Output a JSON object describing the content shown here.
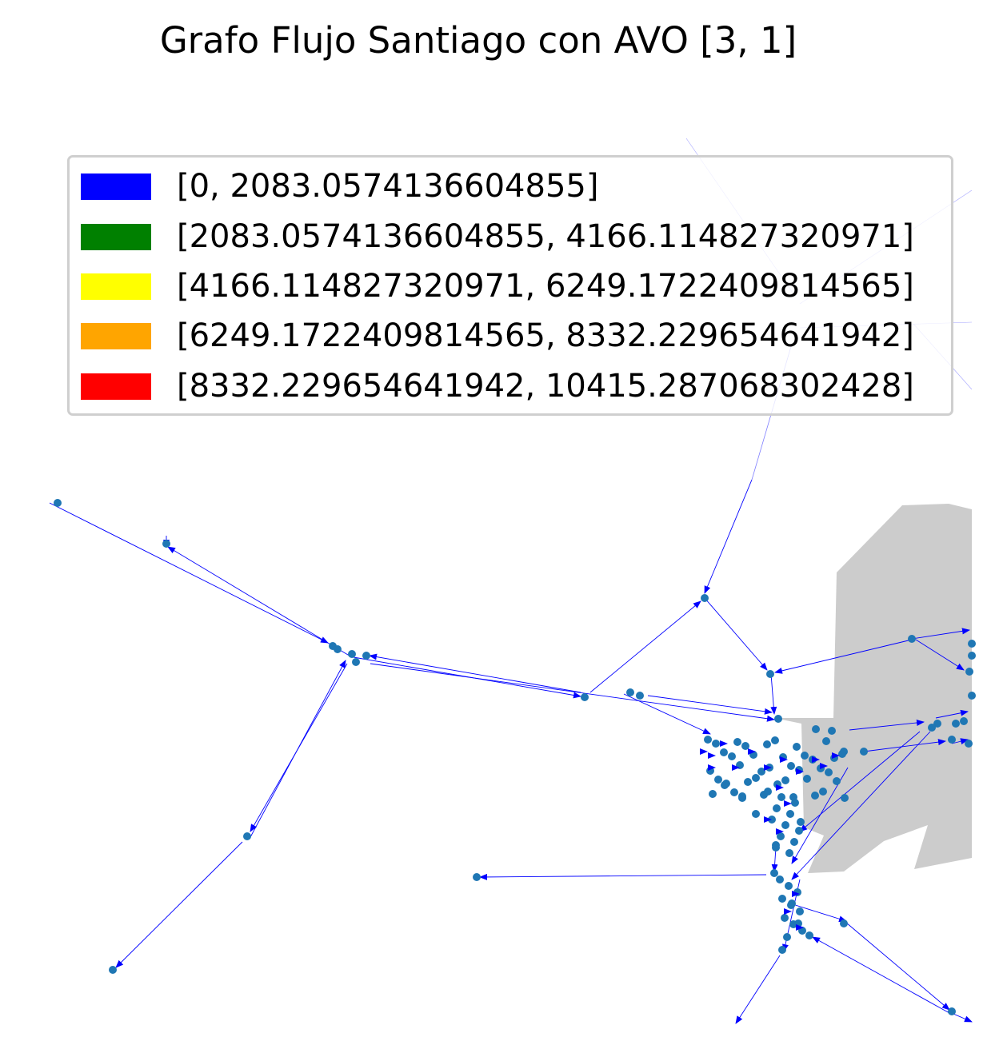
{
  "chart_data": {
    "type": "network_graph",
    "title": "Grafo Flujo Santiago con AVO [3, 1]",
    "legend": {
      "placement": "upper-center",
      "entries": [
        {
          "label": "[0, 2083.0574136604855]",
          "color": "#0000ff"
        },
        {
          "label": "[2083.0574136604855, 4166.114827320971]",
          "color": "#008000"
        },
        {
          "label": "[4166.114827320971, 6249.1722409814565]",
          "color": "#ffff00"
        },
        {
          "label": "[6249.1722409814565, 8332.229654641942]",
          "color": "#ffa500"
        },
        {
          "label": "[8332.229654641942, 10415.287068302428]",
          "color": "#ff0000"
        }
      ]
    },
    "colors": {
      "edge": "#0000ff",
      "node": "#1f77b4",
      "land": "#cccccc"
    },
    "axes_visible": false,
    "grid": false
  }
}
